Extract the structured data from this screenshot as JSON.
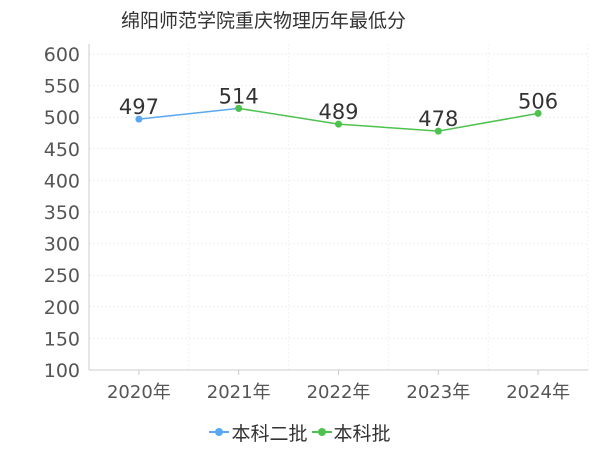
{
  "chart_data": {
    "type": "line",
    "title": "绵阳师范学院重庆物理历年最低分",
    "categories": [
      "2020年",
      "2021年",
      "2022年",
      "2023年",
      "2024年"
    ],
    "series": [
      {
        "name": "本科二批",
        "color": "#5aa9f0",
        "values": [
          497,
          514,
          null,
          null,
          null
        ]
      },
      {
        "name": "本科批",
        "color": "#4ec24e",
        "values": [
          null,
          514,
          489,
          478,
          506
        ]
      }
    ],
    "data_labels": [
      {
        "category": "2020年",
        "value": 497,
        "text": "497"
      },
      {
        "category": "2021年",
        "value": 514,
        "text": "514"
      },
      {
        "category": "2022年",
        "value": 489,
        "text": "489"
      },
      {
        "category": "2023年",
        "value": 478,
        "text": "478"
      },
      {
        "category": "2024年",
        "value": 506,
        "text": "506"
      }
    ],
    "yticks": [
      "100",
      "150",
      "200",
      "250",
      "300",
      "350",
      "400",
      "450",
      "500",
      "550",
      "600"
    ],
    "ylim": [
      100,
      600
    ],
    "grid": true,
    "legend_position": "bottom"
  }
}
